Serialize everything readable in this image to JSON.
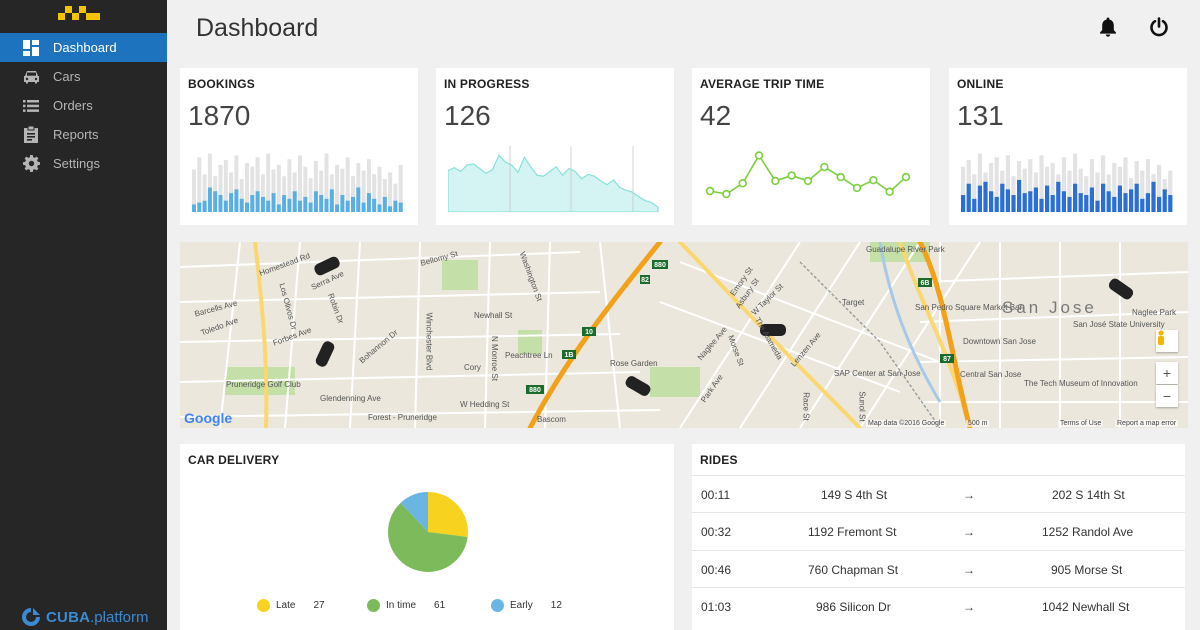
{
  "sidebar": {
    "items": [
      {
        "label": "Dashboard",
        "icon": "dashboard-icon"
      },
      {
        "label": "Cars",
        "icon": "car-icon"
      },
      {
        "label": "Orders",
        "icon": "list-icon"
      },
      {
        "label": "Reports",
        "icon": "clipboard-icon"
      },
      {
        "label": "Settings",
        "icon": "gear-icon"
      }
    ],
    "brand_bold": "CUBA",
    "brand_light": ".platform"
  },
  "header": {
    "title": "Dashboard",
    "icons": [
      "bell-icon",
      "power-icon"
    ]
  },
  "stats": {
    "bookings": {
      "title": "BOOKINGS",
      "value": "1870"
    },
    "in_progress": {
      "title": "IN PROGRESS",
      "value": "126"
    },
    "avg_trip": {
      "title": "AVERAGE TRIP TIME",
      "value": "42"
    },
    "online": {
      "title": "ONLINE",
      "value": "131"
    }
  },
  "map": {
    "city": "San Jose",
    "labels": [
      "Homestead Rd",
      "Bellomy St",
      "Newhall St",
      "Rose Garden",
      "W Hedding St",
      "The Alameda",
      "Target",
      "San Pedro Square Market Bar",
      "Downtown San Jose",
      "San José State University",
      "Central San Jose",
      "SAP Center at San Jose",
      "The Tech Museum of Innovation",
      "Pruneridge Golf Club",
      "Forest - Pruneridge",
      "Bascom",
      "Cory",
      "Guadalupe River Park",
      "Naglee Park",
      "Glendenning Ave",
      "Peachtree Ln",
      "Winchester Blvd",
      "N Monroe St",
      "Washington St",
      "Forbes Ave",
      "Toledo Ave",
      "Barcells Ave",
      "Serra Ave",
      "Los Olivos Dr",
      "Robin Dr",
      "Bohannon Dr",
      "Park Ave",
      "Naglee Ave",
      "Morse St",
      "Lenzen Ave",
      "Emory St",
      "W Taylor St",
      "Asbury St",
      "Race St",
      "Sunol St"
    ],
    "attribution": [
      "Map data ©2016 Google",
      "500 m",
      "Terms of Use",
      "Report a map error"
    ],
    "google": "Google",
    "zoom_in": "+",
    "zoom_out": "−",
    "controls": [
      "pegman-icon",
      "zoom-in-icon",
      "zoom-out-icon"
    ],
    "shields": [
      "880",
      "82",
      "10",
      "1B",
      "880",
      "6B",
      "87"
    ]
  },
  "car_delivery": {
    "title": "CAR DELIVERY",
    "chart_data": {
      "type": "pie",
      "title": "CAR DELIVERY",
      "categories": [
        "Late",
        "In time",
        "Early"
      ],
      "values": [
        27,
        61,
        12
      ],
      "colors": [
        "#f7d21e",
        "#7dba5b",
        "#6ab5e4"
      ]
    }
  },
  "rides": {
    "title": "RIDES",
    "arrow": "→",
    "rows": [
      {
        "time": "00:11",
        "from": "149 S 4th St",
        "to": "202 S 14th St"
      },
      {
        "time": "00:32",
        "from": "1192 Fremont St",
        "to": "1252 Randol Ave"
      },
      {
        "time": "00:46",
        "from": "760 Chapman St",
        "to": "905 Morse St"
      },
      {
        "time": "01:03",
        "from": "986 Silicon Dr",
        "to": "1042 Newhall St"
      }
    ]
  },
  "mini_charts": {
    "bookings": {
      "type": "bar",
      "bg": [
        45,
        58,
        40,
        62,
        38,
        50,
        55,
        42,
        60,
        35,
        52,
        48,
        58,
        40,
        62,
        45,
        50,
        38,
        56,
        42,
        60,
        48,
        36,
        54,
        44,
        62,
        40,
        50,
        46,
        58,
        38,
        52,
        44,
        56,
        40,
        48,
        35,
        42,
        30,
        50
      ],
      "fg": [
        8,
        10,
        12,
        26,
        22,
        18,
        12,
        20,
        24,
        14,
        10,
        18,
        22,
        16,
        12,
        20,
        8,
        18,
        14,
        22,
        12,
        16,
        10,
        22,
        18,
        14,
        24,
        8,
        18,
        12,
        16,
        26,
        10,
        20,
        14,
        8,
        16,
        6,
        12,
        10
      ]
    },
    "in_progress": {
      "type": "area",
      "values": [
        44,
        47,
        43,
        50,
        51,
        46,
        41,
        45,
        60,
        53,
        50,
        42,
        58,
        48,
        39,
        38,
        43,
        48,
        39,
        46,
        43,
        35,
        40,
        38,
        33,
        29,
        34,
        26,
        23,
        21,
        16,
        12,
        10,
        5
      ]
    },
    "avg_trip": {
      "type": "line",
      "values": [
        22,
        18,
        32,
        68,
        35,
        42,
        35,
        53,
        40,
        26,
        36,
        21,
        40
      ]
    },
    "online": {
      "type": "bar",
      "bg": [
        48,
        55,
        40,
        62,
        42,
        52,
        58,
        44,
        60,
        38,
        54,
        46,
        56,
        42,
        60,
        48,
        52,
        40,
        58,
        44,
        62,
        46,
        38,
        56,
        42,
        60,
        40,
        52,
        48,
        58,
        36,
        54,
        44,
        56,
        40,
        50,
        35,
        44
      ],
      "fg": [
        18,
        30,
        14,
        28,
        32,
        22,
        16,
        30,
        24,
        18,
        34,
        20,
        22,
        26,
        14,
        28,
        18,
        32,
        22,
        16,
        30,
        20,
        18,
        26,
        12,
        30,
        22,
        16,
        28,
        20,
        24,
        30,
        14,
        20,
        32,
        16,
        24,
        18
      ]
    }
  }
}
